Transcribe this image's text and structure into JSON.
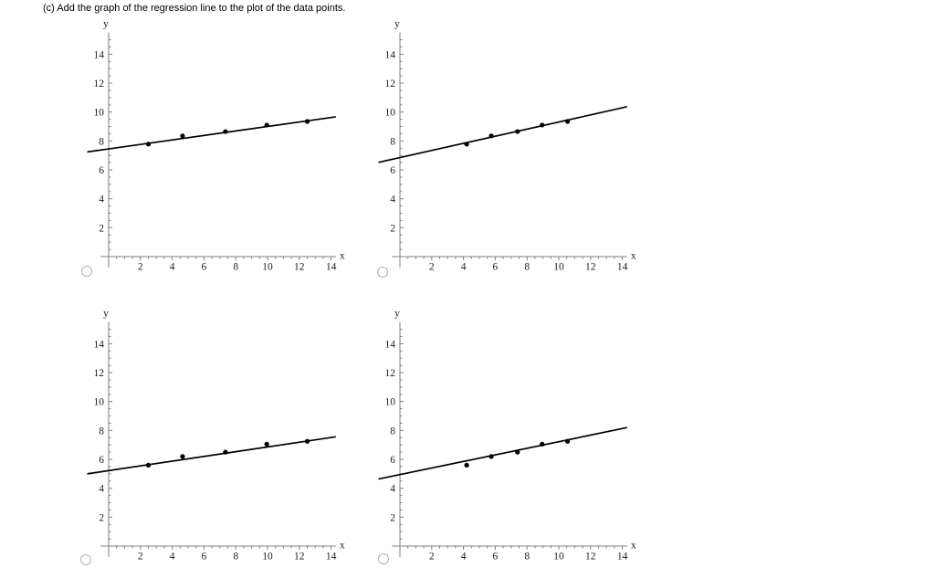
{
  "question": {
    "text": "(c) Add the graph of the regression line to the plot of the data points."
  },
  "colors": {
    "background": "#ffffff",
    "axis": "#7f7f7f",
    "tick_label": "#1c1c1c",
    "data_black": "#000000",
    "radio_border": "#b0b0b0"
  },
  "options": [
    {
      "id": "option-a",
      "position": "top-left",
      "selected": false
    },
    {
      "id": "option-b",
      "position": "top-right",
      "selected": false
    },
    {
      "id": "option-c",
      "position": "bottom-left",
      "selected": false
    },
    {
      "id": "option-d",
      "position": "bottom-right",
      "selected": false
    }
  ],
  "chart_data": [
    {
      "id": "top-left",
      "type": "scatter",
      "title": "",
      "xlabel": "x",
      "ylabel": "y",
      "xlim": [
        -0.5,
        14.3
      ],
      "ylim": [
        -0.75,
        15.5
      ],
      "x_ticks_labeled": [
        2,
        4,
        6,
        8,
        10,
        12,
        14
      ],
      "y_ticks_labeled": [
        2,
        4,
        6,
        8,
        10,
        12,
        14
      ],
      "minor_tick_step": 0.5,
      "grid": false,
      "legend": null,
      "points": [
        [
          2.5,
          7.78
        ],
        [
          4.65,
          8.35
        ],
        [
          7.35,
          8.65
        ],
        [
          9.95,
          9.1
        ],
        [
          12.5,
          9.35
        ]
      ],
      "regression_line": {
        "x1": -1.35,
        "y1": 7.24,
        "x2": 14.3,
        "y2": 9.67
      }
    },
    {
      "id": "top-right",
      "type": "scatter",
      "title": "",
      "xlabel": "x",
      "ylabel": "y",
      "xlim": [
        -0.5,
        14.3
      ],
      "ylim": [
        -0.75,
        15.5
      ],
      "x_ticks_labeled": [
        2,
        4,
        6,
        8,
        10,
        12,
        14
      ],
      "y_ticks_labeled": [
        2,
        4,
        6,
        8,
        10,
        12,
        14
      ],
      "minor_tick_step": 0.5,
      "grid": false,
      "legend": null,
      "points": [
        [
          4.2,
          7.78
        ],
        [
          5.75,
          8.35
        ],
        [
          7.4,
          8.65
        ],
        [
          8.95,
          9.1
        ],
        [
          10.55,
          9.35
        ]
      ],
      "regression_line": {
        "x1": -1.35,
        "y1": 6.52,
        "x2": 14.3,
        "y2": 10.37
      }
    },
    {
      "id": "bottom-left",
      "type": "scatter",
      "title": "",
      "xlabel": "x",
      "ylabel": "y",
      "xlim": [
        -0.5,
        14.3
      ],
      "ylim": [
        -0.75,
        15.5
      ],
      "x_ticks_labeled": [
        2,
        4,
        6,
        8,
        10,
        12,
        14
      ],
      "y_ticks_labeled": [
        2,
        4,
        6,
        8,
        10,
        12,
        14
      ],
      "minor_tick_step": 0.5,
      "grid": false,
      "legend": null,
      "points": [
        [
          2.5,
          5.6
        ],
        [
          4.65,
          6.2
        ],
        [
          7.35,
          6.5
        ],
        [
          9.95,
          7.05
        ],
        [
          12.5,
          7.25
        ]
      ],
      "regression_line": {
        "x1": -1.35,
        "y1": 5.0,
        "x2": 14.3,
        "y2": 7.56
      }
    },
    {
      "id": "bottom-right",
      "type": "scatter",
      "title": "",
      "xlabel": "x",
      "ylabel": "y",
      "xlim": [
        -0.5,
        14.3
      ],
      "ylim": [
        -0.75,
        15.5
      ],
      "x_ticks_labeled": [
        2,
        4,
        6,
        8,
        10,
        12,
        14
      ],
      "y_ticks_labeled": [
        2,
        4,
        6,
        8,
        10,
        12,
        14
      ],
      "minor_tick_step": 0.5,
      "grid": false,
      "legend": null,
      "points": [
        [
          4.2,
          5.6
        ],
        [
          5.75,
          6.2
        ],
        [
          7.4,
          6.5
        ],
        [
          8.95,
          7.05
        ],
        [
          10.55,
          7.25
        ]
      ],
      "regression_line": {
        "x1": -1.35,
        "y1": 4.64,
        "x2": 14.3,
        "y2": 8.2
      }
    }
  ]
}
